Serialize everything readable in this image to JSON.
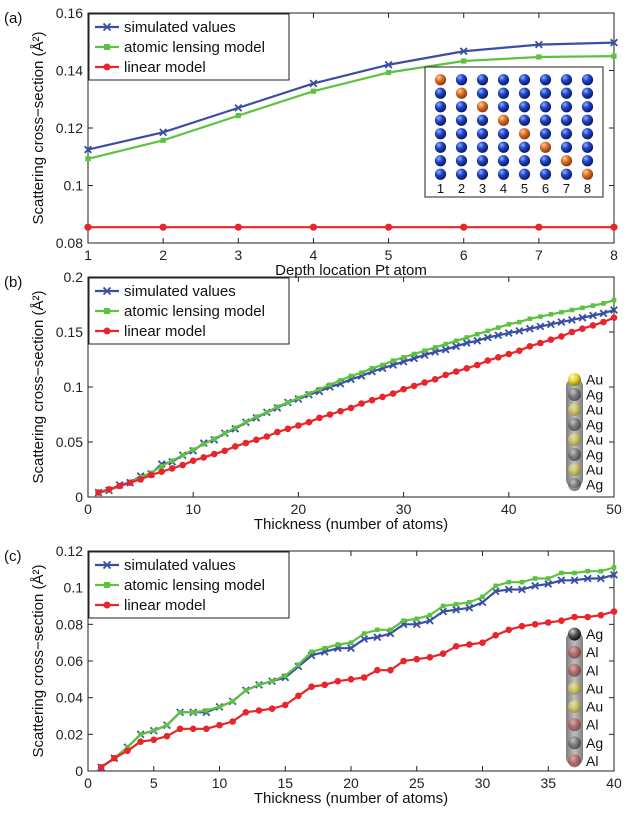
{
  "colors": {
    "simulated": "#3a4fa3",
    "lensing": "#5dc23f",
    "linear": "#e8252a",
    "au": "#e8d83a",
    "ag": "#5a5a5a",
    "al": "#b8424a",
    "blue_atom": "#1c3ab0",
    "pt_atom": "#d2682a"
  },
  "chart_data": [
    {
      "type": "line",
      "panel_label": "(a)",
      "xlabel": "Depth location Pt atom",
      "ylabel": "Scattering cross−section (Å²)",
      "xlim": [
        1,
        8
      ],
      "ylim": [
        0.08,
        0.16
      ],
      "xticks": [
        1,
        2,
        3,
        4,
        5,
        6,
        7,
        8
      ],
      "yticks": [
        0.08,
        0.1,
        0.12,
        0.14,
        0.16
      ],
      "x": [
        1,
        2,
        3,
        4,
        5,
        6,
        7,
        8
      ],
      "series": [
        {
          "name": "simulated values",
          "marker": "x",
          "values": [
            0.1125,
            0.1185,
            0.127,
            0.1355,
            0.142,
            0.1467,
            0.149,
            0.1497
          ]
        },
        {
          "name": "atomic lensing model",
          "marker": "square",
          "values": [
            0.1093,
            0.1157,
            0.1243,
            0.1328,
            0.1393,
            0.1433,
            0.1447,
            0.145
          ]
        },
        {
          "name": "linear model",
          "marker": "circle",
          "values": [
            0.0855,
            0.0855,
            0.0855,
            0.0855,
            0.0855,
            0.0855,
            0.0855,
            0.0855
          ]
        }
      ],
      "legend": "top-left",
      "inset_labels": [
        "1",
        "2",
        "3",
        "4",
        "5",
        "6",
        "7",
        "8"
      ]
    },
    {
      "type": "line",
      "panel_label": "(b)",
      "xlabel": "Thickness (number of atoms)",
      "ylabel": "Scattering cross−section (Å²)",
      "xlim": [
        0,
        50
      ],
      "ylim": [
        0,
        0.2
      ],
      "xticks": [
        0,
        10,
        20,
        30,
        40,
        50
      ],
      "yticks": [
        0,
        0.05,
        0.1,
        0.15,
        0.2
      ],
      "x": [
        1,
        2,
        3,
        4,
        5,
        6,
        7,
        8,
        9,
        10,
        11,
        12,
        13,
        14,
        15,
        16,
        17,
        18,
        19,
        20,
        21,
        22,
        23,
        24,
        25,
        26,
        27,
        28,
        29,
        30,
        31,
        32,
        33,
        34,
        35,
        36,
        37,
        38,
        39,
        40,
        41,
        42,
        43,
        44,
        45,
        46,
        47,
        48,
        49,
        50
      ],
      "series": [
        {
          "name": "simulated values",
          "marker": "x",
          "values": [
            0.004,
            0.006,
            0.011,
            0.013,
            0.019,
            0.021,
            0.03,
            0.032,
            0.038,
            0.042,
            0.049,
            0.052,
            0.058,
            0.062,
            0.068,
            0.072,
            0.077,
            0.081,
            0.086,
            0.089,
            0.093,
            0.096,
            0.1,
            0.103,
            0.107,
            0.11,
            0.114,
            0.117,
            0.12,
            0.123,
            0.126,
            0.129,
            0.132,
            0.134,
            0.137,
            0.14,
            0.142,
            0.145,
            0.147,
            0.149,
            0.151,
            0.153,
            0.155,
            0.157,
            0.159,
            0.161,
            0.163,
            0.165,
            0.167,
            0.17
          ]
        },
        {
          "name": "atomic lensing model",
          "marker": "square",
          "values": [
            0.004,
            0.006,
            0.01,
            0.013,
            0.018,
            0.022,
            0.028,
            0.033,
            0.038,
            0.043,
            0.048,
            0.053,
            0.058,
            0.063,
            0.068,
            0.073,
            0.077,
            0.082,
            0.086,
            0.09,
            0.094,
            0.098,
            0.102,
            0.106,
            0.11,
            0.113,
            0.117,
            0.12,
            0.124,
            0.127,
            0.13,
            0.133,
            0.136,
            0.139,
            0.142,
            0.145,
            0.148,
            0.151,
            0.154,
            0.157,
            0.159,
            0.162,
            0.164,
            0.166,
            0.168,
            0.17,
            0.172,
            0.174,
            0.176,
            0.179
          ]
        },
        {
          "name": "linear model",
          "marker": "circle",
          "values": [
            0.004,
            0.007,
            0.01,
            0.013,
            0.016,
            0.02,
            0.023,
            0.026,
            0.029,
            0.033,
            0.036,
            0.039,
            0.042,
            0.046,
            0.049,
            0.052,
            0.055,
            0.059,
            0.062,
            0.065,
            0.068,
            0.072,
            0.075,
            0.078,
            0.081,
            0.085,
            0.088,
            0.091,
            0.094,
            0.098,
            0.101,
            0.104,
            0.107,
            0.111,
            0.114,
            0.117,
            0.12,
            0.124,
            0.127,
            0.13,
            0.133,
            0.137,
            0.14,
            0.143,
            0.146,
            0.15,
            0.153,
            0.156,
            0.159,
            0.163
          ]
        }
      ],
      "legend": "top-left",
      "inset_labels": [
        "Au",
        "Ag",
        "Au",
        "Ag",
        "Au",
        "Ag",
        "Au",
        "Ag"
      ]
    },
    {
      "type": "line",
      "panel_label": "(c)",
      "xlabel": "Thickness (number of atoms)",
      "ylabel": "Scattering cross−section (Å²)",
      "xlim": [
        0,
        40
      ],
      "ylim": [
        0,
        0.12
      ],
      "xticks": [
        0,
        5,
        10,
        15,
        20,
        25,
        30,
        35,
        40
      ],
      "yticks": [
        0,
        0.02,
        0.04,
        0.06,
        0.08,
        0.1,
        0.12
      ],
      "x": [
        1,
        2,
        3,
        4,
        5,
        6,
        7,
        8,
        9,
        10,
        11,
        12,
        13,
        14,
        15,
        16,
        17,
        18,
        19,
        20,
        21,
        22,
        23,
        24,
        25,
        26,
        27,
        28,
        29,
        30,
        31,
        32,
        33,
        34,
        35,
        36,
        37,
        38,
        39,
        40
      ],
      "series": [
        {
          "name": "simulated values",
          "marker": "x",
          "values": [
            0.002,
            0.007,
            0.013,
            0.02,
            0.022,
            0.025,
            0.032,
            0.032,
            0.032,
            0.035,
            0.038,
            0.044,
            0.047,
            0.049,
            0.051,
            0.057,
            0.063,
            0.065,
            0.067,
            0.067,
            0.072,
            0.073,
            0.075,
            0.08,
            0.08,
            0.082,
            0.087,
            0.088,
            0.089,
            0.092,
            0.098,
            0.099,
            0.099,
            0.101,
            0.102,
            0.104,
            0.104,
            0.105,
            0.105,
            0.107
          ]
        },
        {
          "name": "atomic lensing model",
          "marker": "square",
          "values": [
            0.002,
            0.007,
            0.013,
            0.02,
            0.022,
            0.025,
            0.032,
            0.032,
            0.033,
            0.035,
            0.038,
            0.044,
            0.047,
            0.049,
            0.052,
            0.058,
            0.065,
            0.067,
            0.069,
            0.07,
            0.075,
            0.077,
            0.077,
            0.082,
            0.083,
            0.085,
            0.09,
            0.091,
            0.092,
            0.095,
            0.101,
            0.103,
            0.103,
            0.105,
            0.105,
            0.108,
            0.108,
            0.109,
            0.109,
            0.111
          ]
        },
        {
          "name": "linear model",
          "marker": "circle",
          "values": [
            0.002,
            0.007,
            0.011,
            0.016,
            0.017,
            0.019,
            0.023,
            0.023,
            0.023,
            0.025,
            0.027,
            0.032,
            0.033,
            0.034,
            0.036,
            0.041,
            0.046,
            0.047,
            0.049,
            0.05,
            0.051,
            0.055,
            0.055,
            0.06,
            0.061,
            0.062,
            0.064,
            0.068,
            0.069,
            0.07,
            0.074,
            0.077,
            0.079,
            0.08,
            0.081,
            0.082,
            0.084,
            0.084,
            0.085,
            0.087
          ]
        }
      ],
      "legend": "top-left",
      "inset_labels": [
        "Ag",
        "Al",
        "Al",
        "Au",
        "Au",
        "Al",
        "Ag",
        "Al"
      ]
    }
  ]
}
